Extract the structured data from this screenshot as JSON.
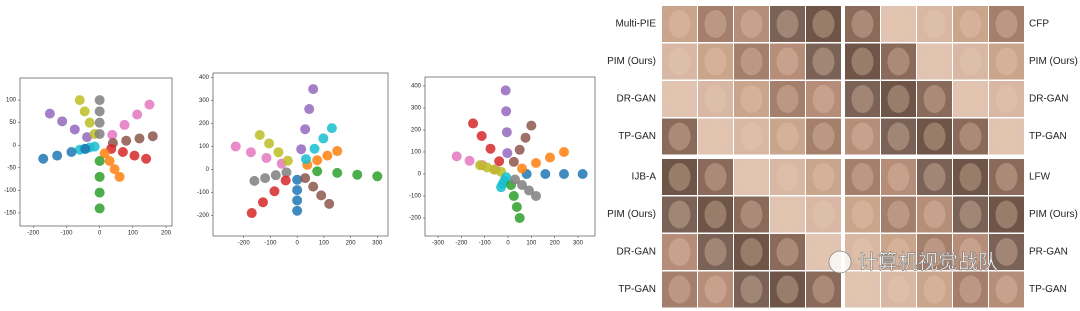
{
  "chart_data": [
    {
      "type": "scatter",
      "xlim": [
        -240,
        218
      ],
      "ylim": [
        -179,
        149
      ],
      "xticks": [
        -200,
        -100,
        0,
        100,
        200
      ],
      "yticks": [
        100,
        50,
        0,
        -50,
        -100,
        -150
      ],
      "series": [
        {
          "color": "#e377c2",
          "x": [
            38,
            75,
            113,
            150
          ],
          "y": [
            23,
            45,
            68,
            90
          ]
        },
        {
          "color": "#8c564b",
          "x": [
            40,
            80,
            120,
            160
          ],
          "y": [
            5,
            10,
            15,
            20
          ]
        },
        {
          "color": "#d62728",
          "x": [
            35,
            70,
            105,
            140
          ],
          "y": [
            -8,
            -15,
            -23,
            -30
          ]
        },
        {
          "color": "#ff7f0e",
          "x": [
            15,
            30,
            45,
            60
          ],
          "y": [
            -18,
            -35,
            -53,
            -70
          ]
        },
        {
          "color": "#2ca02c",
          "x": [
            0,
            0,
            0,
            0
          ],
          "y": [
            -35,
            -70,
            -105,
            -140
          ]
        },
        {
          "color": "#17becf",
          "x": [
            -15,
            -30,
            -45,
            -60
          ],
          "y": [
            -3,
            -5,
            -8,
            -10
          ]
        },
        {
          "color": "#1f77b4",
          "x": [
            -43,
            -85,
            -128,
            -170
          ],
          "y": [
            -8,
            -15,
            -23,
            -30
          ]
        },
        {
          "color": "#9467bd",
          "x": [
            -38,
            -75,
            -113,
            -150
          ],
          "y": [
            18,
            35,
            53,
            70
          ]
        },
        {
          "color": "#bcbd22",
          "x": [
            -15,
            -30,
            -45,
            -60
          ],
          "y": [
            25,
            50,
            75,
            100
          ]
        },
        {
          "color": "#7f7f7f",
          "x": [
            0,
            0,
            0,
            0
          ],
          "y": [
            25,
            50,
            75,
            100
          ]
        }
      ]
    },
    {
      "type": "scatter",
      "xlim": [
        -315,
        340
      ],
      "ylim": [
        -290,
        420
      ],
      "xticks": [
        -200,
        -100,
        0,
        100,
        200,
        300
      ],
      "yticks": [
        400,
        300,
        200,
        100,
        0,
        -100,
        -200
      ],
      "series": [
        {
          "color": "#9467bd",
          "x": [
            15,
            30,
            45,
            60
          ],
          "y": [
            88,
            175,
            263,
            350
          ]
        },
        {
          "color": "#e377c2",
          "x": [
            -58,
            -115,
            -173,
            -230
          ],
          "y": [
            25,
            50,
            75,
            100
          ]
        },
        {
          "color": "#bcbd22",
          "x": [
            -35,
            -70,
            -105,
            -140
          ],
          "y": [
            38,
            75,
            113,
            150
          ]
        },
        {
          "color": "#7f7f7f",
          "x": [
            -40,
            -80,
            -120,
            -160
          ],
          "y": [
            -13,
            -25,
            -38,
            -50
          ]
        },
        {
          "color": "#d62728",
          "x": [
            -43,
            -85,
            -128,
            -170
          ],
          "y": [
            -48,
            -95,
            -143,
            -190
          ]
        },
        {
          "color": "#1f77b4",
          "x": [
            0,
            0,
            0,
            0
          ],
          "y": [
            -45,
            -90,
            -135,
            -180
          ]
        },
        {
          "color": "#8c564b",
          "x": [
            30,
            60,
            90,
            120
          ],
          "y": [
            -38,
            -75,
            -113,
            -150
          ]
        },
        {
          "color": "#2ca02c",
          "x": [
            75,
            150,
            225,
            300
          ],
          "y": [
            -8,
            -15,
            -23,
            -30
          ]
        },
        {
          "color": "#ff7f0e",
          "x": [
            38,
            75,
            113,
            150
          ],
          "y": [
            20,
            40,
            60,
            80
          ]
        },
        {
          "color": "#17becf",
          "x": [
            33,
            65,
            98,
            130
          ],
          "y": [
            45,
            90,
            135,
            180
          ]
        }
      ]
    },
    {
      "type": "scatter",
      "xlim": [
        -356,
        373
      ],
      "ylim": [
        -282,
        441
      ],
      "xticks": [
        -300,
        -200,
        -100,
        0,
        100,
        200,
        300
      ],
      "yticks": [
        400,
        300,
        200,
        100,
        0,
        -100,
        -200
      ],
      "series": [
        {
          "color": "#9467bd",
          "x": [
            -3,
            -5,
            -8,
            -10
          ],
          "y": [
            95,
            190,
            285,
            380
          ]
        },
        {
          "color": "#d62728",
          "x": [
            -38,
            -75,
            -113,
            -150
          ],
          "y": [
            58,
            115,
            173,
            230
          ]
        },
        {
          "color": "#8c564b",
          "x": [
            25,
            50,
            75,
            100
          ],
          "y": [
            55,
            110,
            165,
            220
          ]
        },
        {
          "color": "#e377c2",
          "x": [
            -55,
            -110,
            -165,
            -220
          ],
          "y": [
            20,
            40,
            60,
            80
          ]
        },
        {
          "color": "#bcbd22",
          "x": [
            -30,
            -60,
            -90,
            -120
          ],
          "y": [
            10,
            20,
            30,
            40
          ]
        },
        {
          "color": "#17becf",
          "x": [
            -8,
            -15,
            -23,
            -30
          ],
          "y": [
            -15,
            -30,
            -45,
            -60
          ]
        },
        {
          "color": "#2ca02c",
          "x": [
            13,
            25,
            38,
            50
          ],
          "y": [
            -50,
            -100,
            -150,
            -200
          ]
        },
        {
          "color": "#7f7f7f",
          "x": [
            30,
            60,
            90,
            120
          ],
          "y": [
            -25,
            -50,
            -75,
            -100
          ]
        },
        {
          "color": "#1f77b4",
          "x": [
            80,
            160,
            240,
            320
          ],
          "y": [
            0,
            0,
            0,
            0
          ]
        },
        {
          "color": "#ff7f0e",
          "x": [
            60,
            120,
            180,
            240
          ],
          "y": [
            25,
            50,
            75,
            100
          ]
        }
      ]
    }
  ],
  "figure": {
    "left_labels": [
      "Multi-PIE",
      "PIM (Ours)",
      "DR-GAN",
      "TP-GAN",
      "IJB-A",
      "PIM (Ours)",
      "DR-GAN",
      "TP-GAN"
    ],
    "right_labels": [
      "CFP",
      "PIM (Ours)",
      "DR-GAN",
      "TP-GAN",
      "LFW",
      "PIM (Ours)",
      "PR-GAN",
      "TP-GAN"
    ],
    "watermark": "计算机视觉战队"
  }
}
